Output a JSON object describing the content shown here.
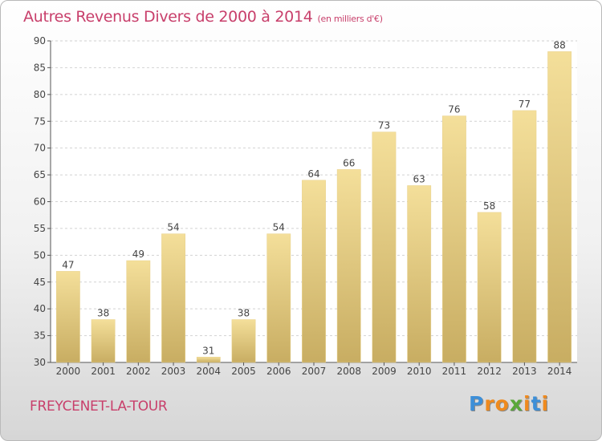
{
  "chart_data": {
    "type": "bar",
    "title": "Autres Revenus Divers de 2000 à 2014",
    "subtitle": "(en milliers d'€)",
    "categories": [
      "2000",
      "2001",
      "2002",
      "2003",
      "2004",
      "2005",
      "2006",
      "2007",
      "2008",
      "2009",
      "2010",
      "2011",
      "2012",
      "2013",
      "2014"
    ],
    "values": [
      47,
      38,
      49,
      54,
      31,
      38,
      54,
      64,
      66,
      73,
      63,
      76,
      58,
      77,
      88
    ],
    "ylim": [
      30,
      90
    ],
    "yticks": [
      30,
      35,
      40,
      45,
      50,
      55,
      60,
      65,
      70,
      75,
      80,
      85,
      90
    ],
    "grid": true,
    "bar_color": "#e6cd86"
  },
  "footer": {
    "commune": "FREYCENET-LA-TOUR",
    "brand_letters": [
      {
        "ch": "P",
        "color": "#3d8fd8"
      },
      {
        "ch": "r",
        "color": "#ef8a1e"
      },
      {
        "ch": "o",
        "color": "#ef8a1e"
      },
      {
        "ch": "x",
        "color": "#5aa83a"
      },
      {
        "ch": "i",
        "color": "#ef8a1e"
      },
      {
        "ch": "t",
        "color": "#3d8fd8"
      },
      {
        "ch": "i",
        "color": "#ef8a1e"
      }
    ]
  },
  "colors": {
    "accent": "#c83f6b"
  }
}
